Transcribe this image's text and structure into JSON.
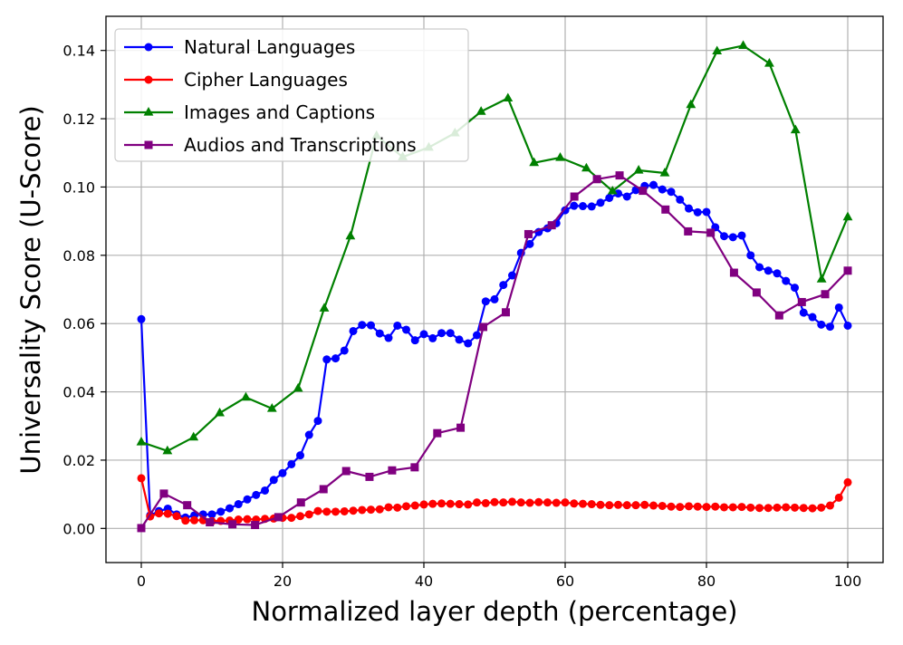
{
  "chart_data": {
    "type": "line",
    "xlabel": "Normalized layer depth (percentage)",
    "ylabel": "Universality Score (U-Score)",
    "xlim": [
      -5,
      105
    ],
    "ylim": [
      -0.01,
      0.15
    ],
    "xticks": [
      0,
      20,
      40,
      60,
      80,
      100
    ],
    "xtick_labels": [
      "0",
      "20",
      "40",
      "60",
      "80",
      "100"
    ],
    "yticks": [
      0.0,
      0.02,
      0.04,
      0.06,
      0.08,
      0.1,
      0.12,
      0.14
    ],
    "ytick_labels": [
      "0.00",
      "0.02",
      "0.04",
      "0.06",
      "0.08",
      "0.10",
      "0.12",
      "0.14"
    ],
    "grid": true,
    "legend_position": "top-left",
    "series": [
      {
        "name": "Natural Languages",
        "color": "#0000ff",
        "marker": "circle",
        "x": [
          0,
          1.25,
          2.5,
          3.75,
          5,
          6.25,
          7.5,
          8.75,
          10,
          11.25,
          12.5,
          13.75,
          15,
          16.25,
          17.5,
          18.75,
          20,
          21.25,
          22.5,
          23.75,
          25,
          26.25,
          27.5,
          28.75,
          30,
          31.25,
          32.5,
          33.75,
          35,
          36.25,
          37.5,
          38.75,
          40,
          41.25,
          42.5,
          43.75,
          45,
          46.25,
          47.5,
          48.75,
          50,
          51.25,
          52.5,
          53.75,
          55,
          56.25,
          57.5,
          58.75,
          60,
          61.25,
          62.5,
          63.75,
          65,
          66.25,
          67.5,
          68.75,
          70,
          71.25,
          72.5,
          73.75,
          75,
          76.25,
          77.5,
          78.75,
          80,
          81.25,
          82.5,
          83.75,
          85,
          86.25,
          87.5,
          88.75,
          90,
          91.25,
          92.5,
          93.75,
          95,
          96.25,
          97.5,
          98.75,
          100
        ],
        "values": [
          0.0613,
          0.0038,
          0.0051,
          0.0058,
          0.0041,
          0.0032,
          0.0038,
          0.0041,
          0.0041,
          0.0049,
          0.0059,
          0.0071,
          0.0085,
          0.0098,
          0.0111,
          0.0142,
          0.0162,
          0.0188,
          0.0214,
          0.0274,
          0.0315,
          0.0495,
          0.0498,
          0.0521,
          0.0578,
          0.0596,
          0.0595,
          0.0571,
          0.0558,
          0.0594,
          0.0582,
          0.0551,
          0.0569,
          0.0557,
          0.0572,
          0.0572,
          0.0553,
          0.0542,
          0.0566,
          0.0665,
          0.0671,
          0.0713,
          0.0741,
          0.0807,
          0.0833,
          0.0868,
          0.0879,
          0.0894,
          0.0932,
          0.0945,
          0.0944,
          0.0943,
          0.0954,
          0.0968,
          0.0981,
          0.0972,
          0.0991,
          0.1003,
          0.1006,
          0.0993,
          0.0986,
          0.0963,
          0.0937,
          0.0926,
          0.0927,
          0.0882,
          0.0856,
          0.0853,
          0.0858,
          0.08,
          0.0765,
          0.0755,
          0.0747,
          0.0725,
          0.0705,
          0.0632,
          0.0619,
          0.0597,
          0.0591,
          0.0647,
          0.0594
        ]
      },
      {
        "name": "Cipher Languages",
        "color": "#ff0000",
        "marker": "circle",
        "x": [
          0,
          1.25,
          2.5,
          3.75,
          5,
          6.25,
          7.5,
          8.75,
          10,
          11.25,
          12.5,
          13.75,
          15,
          16.25,
          17.5,
          18.75,
          20,
          21.25,
          22.5,
          23.75,
          25,
          26.25,
          27.5,
          28.75,
          30,
          31.25,
          32.5,
          33.75,
          35,
          36.25,
          37.5,
          38.75,
          40,
          41.25,
          42.5,
          43.75,
          45,
          46.25,
          47.5,
          48.75,
          50,
          51.25,
          52.5,
          53.75,
          55,
          56.25,
          57.5,
          58.75,
          60,
          61.25,
          62.5,
          63.75,
          65,
          66.25,
          67.5,
          68.75,
          70,
          71.25,
          72.5,
          73.75,
          75,
          76.25,
          77.5,
          78.75,
          80,
          81.25,
          82.5,
          83.75,
          85,
          86.25,
          87.5,
          88.75,
          90,
          91.25,
          92.5,
          93.75,
          95,
          96.25,
          97.5,
          98.75,
          100
        ],
        "values": [
          0.0147,
          0.0035,
          0.0044,
          0.0043,
          0.0036,
          0.0023,
          0.0024,
          0.0024,
          0.0021,
          0.0022,
          0.0023,
          0.0026,
          0.0027,
          0.0026,
          0.0028,
          0.0029,
          0.0031,
          0.0031,
          0.0036,
          0.0041,
          0.0051,
          0.0049,
          0.0049,
          0.005,
          0.0052,
          0.0054,
          0.0055,
          0.0056,
          0.0062,
          0.0061,
          0.0065,
          0.0067,
          0.007,
          0.0072,
          0.0073,
          0.0072,
          0.0071,
          0.007,
          0.0076,
          0.0074,
          0.0077,
          0.0076,
          0.0078,
          0.0076,
          0.0075,
          0.0077,
          0.0076,
          0.0075,
          0.0076,
          0.0073,
          0.0072,
          0.0071,
          0.0069,
          0.0068,
          0.0069,
          0.0068,
          0.0068,
          0.0069,
          0.0067,
          0.0066,
          0.0064,
          0.0063,
          0.0065,
          0.0064,
          0.0063,
          0.0064,
          0.0062,
          0.0062,
          0.0063,
          0.0061,
          0.006,
          0.006,
          0.0061,
          0.0062,
          0.0061,
          0.006,
          0.0059,
          0.0061,
          0.0067,
          0.009,
          0.0135
        ]
      },
      {
        "name": "Images and Captions",
        "color": "#008000",
        "marker": "triangle",
        "x": [
          0,
          3.7,
          7.4,
          11.1,
          14.8,
          18.5,
          22.2,
          25.9,
          29.6,
          33.3,
          37.0,
          40.7,
          44.4,
          48.1,
          51.9,
          55.6,
          59.3,
          63.0,
          66.7,
          70.4,
          74.1,
          77.8,
          81.5,
          85.2,
          88.9,
          92.6,
          96.3,
          100
        ],
        "values": [
          0.0253,
          0.0227,
          0.0267,
          0.0338,
          0.0384,
          0.0351,
          0.041,
          0.0645,
          0.0856,
          0.115,
          0.1088,
          0.1116,
          0.1158,
          0.1221,
          0.126,
          0.1071,
          0.1086,
          0.1055,
          0.0988,
          0.1049,
          0.1041,
          0.1241,
          0.1398,
          0.1414,
          0.1362,
          0.1167,
          0.073,
          0.0912
        ]
      },
      {
        "name": "Audios and Transcriptions",
        "color": "#800080",
        "marker": "square",
        "x": [
          0,
          3.2,
          6.5,
          9.7,
          12.9,
          16.1,
          19.4,
          22.6,
          25.8,
          29.0,
          32.3,
          35.5,
          38.7,
          41.9,
          45.2,
          48.4,
          51.6,
          54.8,
          58.1,
          61.3,
          64.5,
          67.7,
          71.0,
          74.2,
          77.4,
          80.6,
          83.9,
          87.1,
          90.3,
          93.5,
          96.8,
          100
        ],
        "values": [
          0.0001,
          0.0102,
          0.0068,
          0.0018,
          0.0012,
          0.001,
          0.0033,
          0.0076,
          0.0115,
          0.0168,
          0.0151,
          0.017,
          0.0179,
          0.0279,
          0.0295,
          0.059,
          0.0633,
          0.0862,
          0.0888,
          0.0972,
          0.1023,
          0.1034,
          0.0989,
          0.0934,
          0.087,
          0.0866,
          0.0749,
          0.0691,
          0.0624,
          0.0663,
          0.0686,
          0.0755
        ]
      }
    ]
  }
}
